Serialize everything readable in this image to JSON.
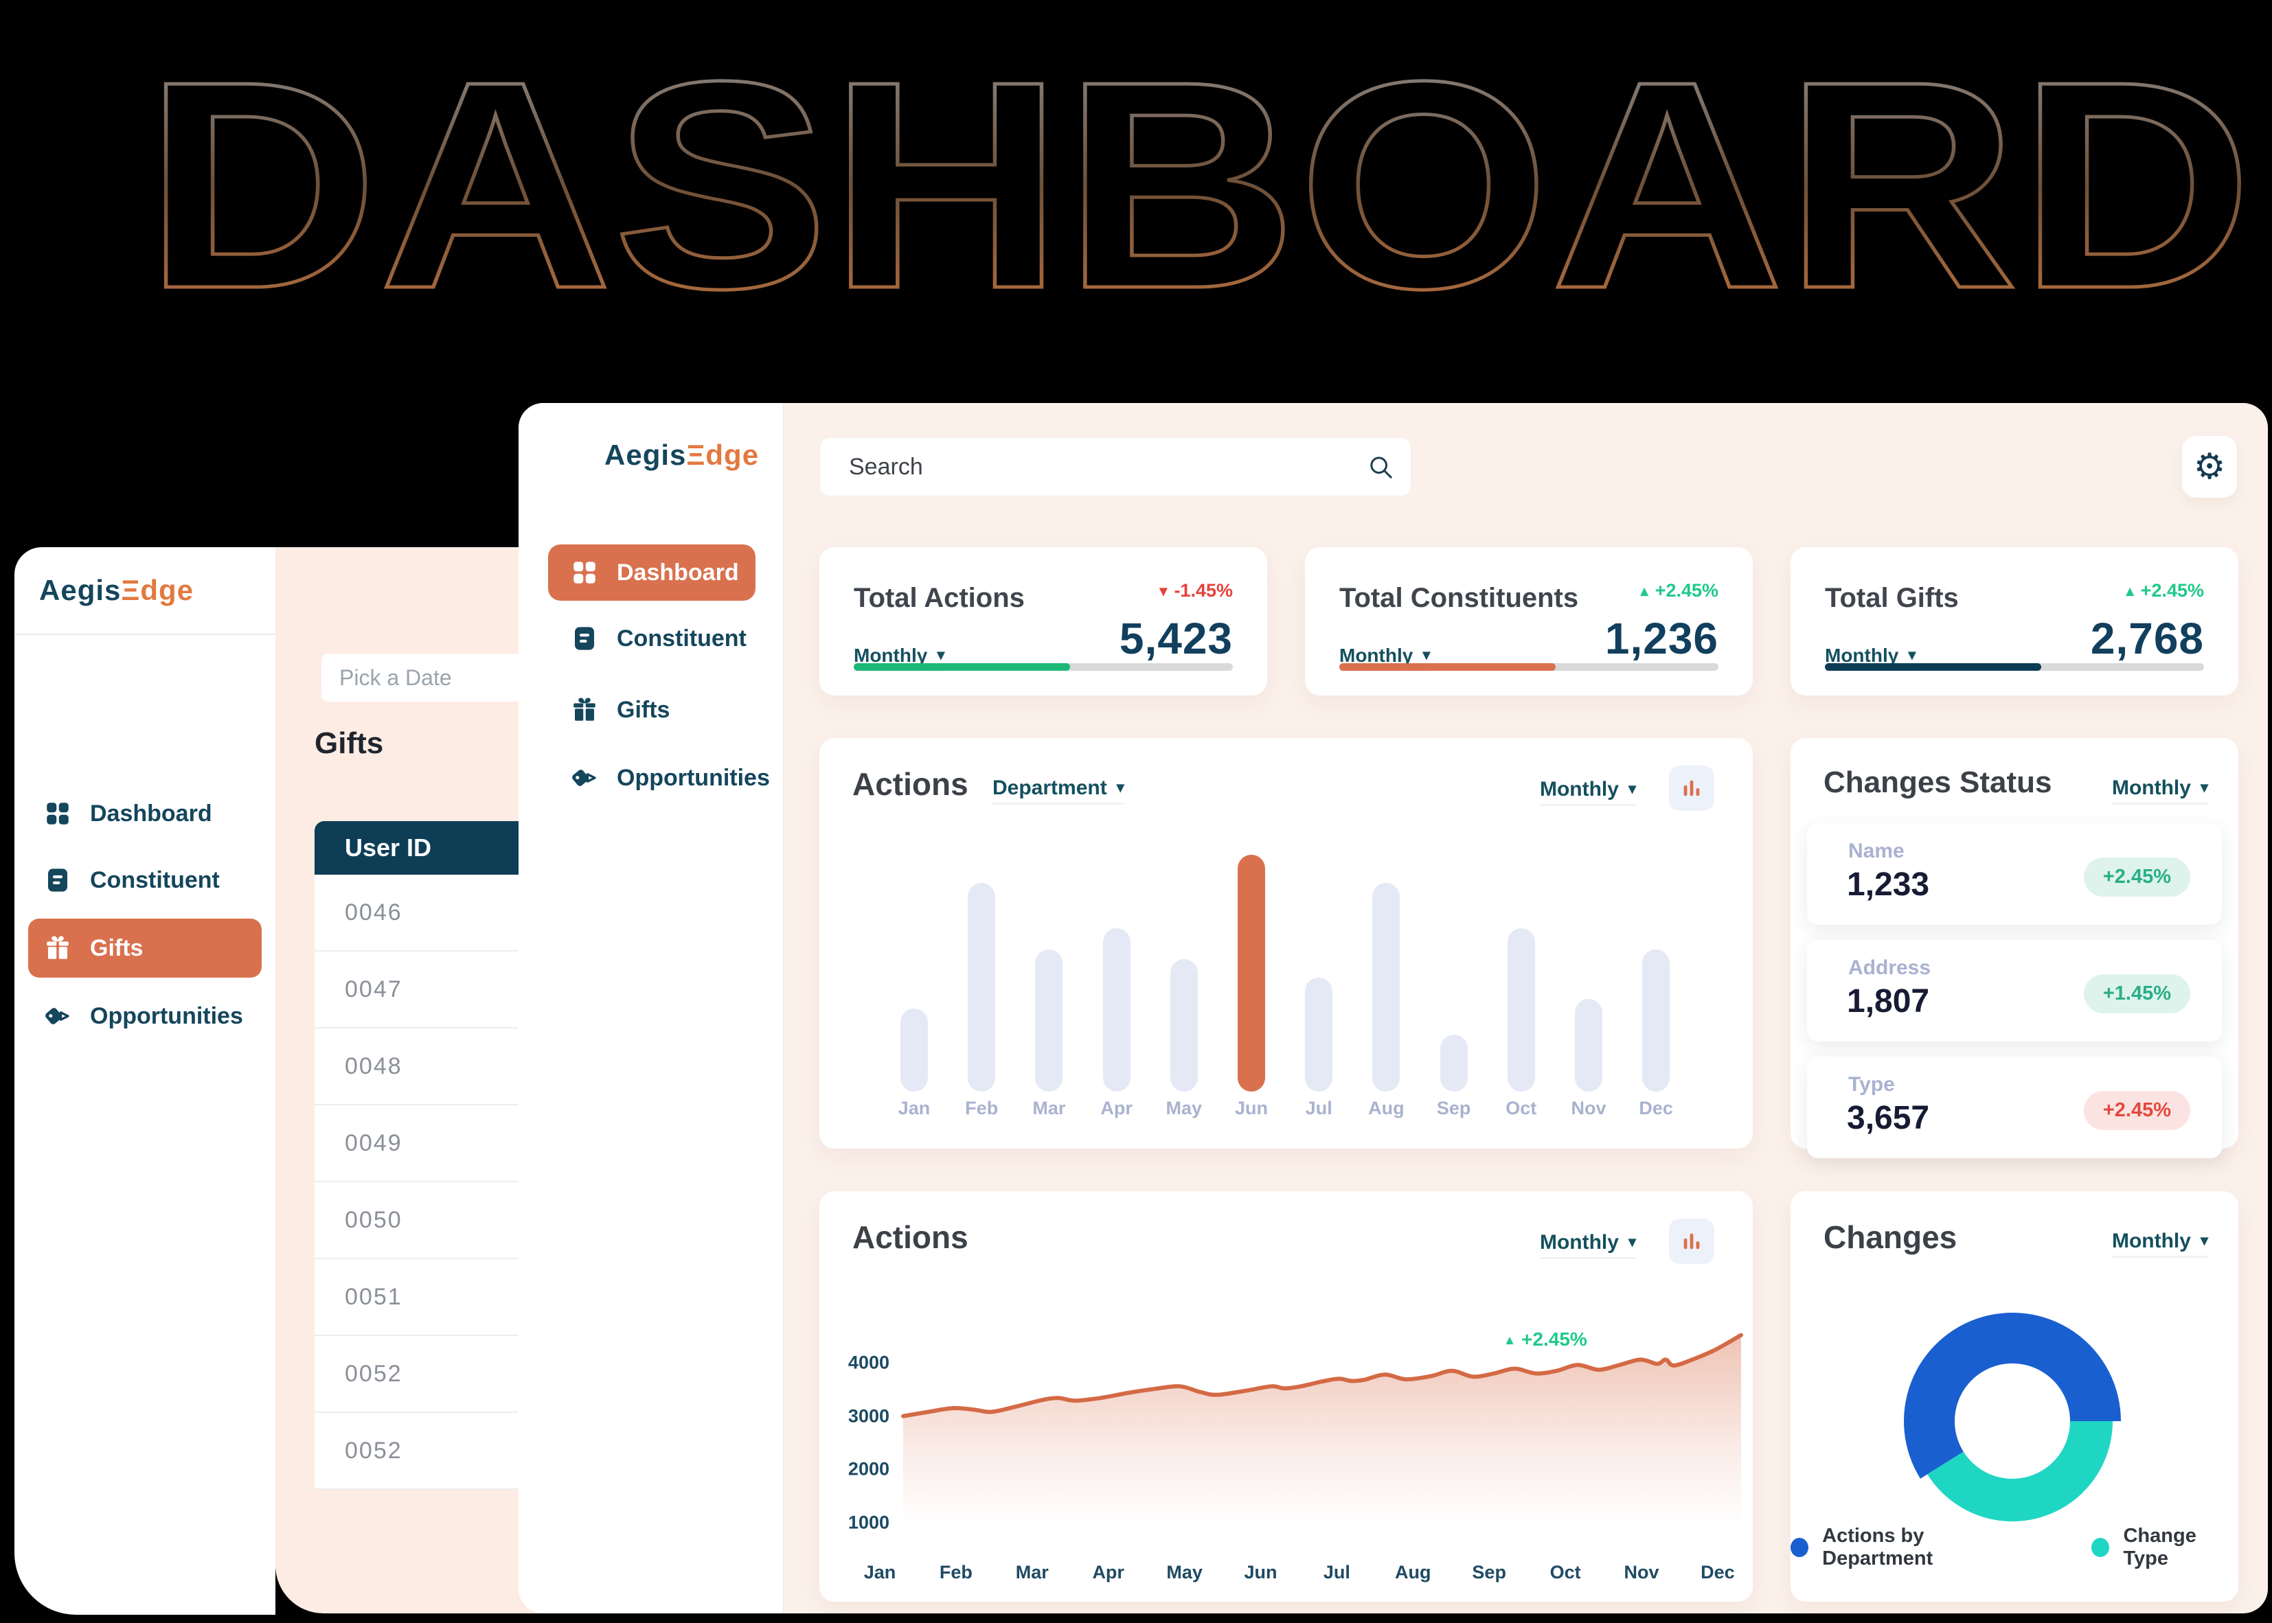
{
  "hero": {
    "title": "DASHBOARD",
    "stroke_top": "#8f8f8f",
    "stroke_bottom": "#c4753f"
  },
  "brand": {
    "left": "Aegis",
    "right": "Ξdge",
    "left_color": "#14465c",
    "right_color": "#e2793f"
  },
  "back_window": {
    "nav": [
      {
        "label": "Dashboard"
      },
      {
        "label": "Constituent"
      },
      {
        "label": "Gifts",
        "active": true
      },
      {
        "label": "Opportunities"
      }
    ],
    "date_placeholder": "Pick a Date",
    "section_title": "Gifts",
    "table": {
      "header": "User ID",
      "rows": [
        "0046",
        "0047",
        "0048",
        "0049",
        "0050",
        "0051",
        "0052",
        "0052"
      ]
    }
  },
  "main_window": {
    "nav": [
      {
        "label": "Dashboard",
        "active": true
      },
      {
        "label": "Constituent"
      },
      {
        "label": "Gifts"
      },
      {
        "label": "Opportunities"
      }
    ],
    "search_placeholder": "Search",
    "stat_cards": [
      {
        "title": "Total Actions",
        "delta": "-1.45%",
        "delta_dir": "down",
        "period": "Monthly",
        "value": "5,423",
        "progress_pct": 57,
        "bar_color": "#1db877"
      },
      {
        "title": "Total Constituents",
        "delta": "+2.45%",
        "delta_dir": "up",
        "period": "Monthly",
        "value": "1,236",
        "progress_pct": 57,
        "bar_color": "#d9714e"
      },
      {
        "title": "Total Gifts",
        "delta": "+2.45%",
        "delta_dir": "up",
        "period": "Monthly",
        "value": "2,768",
        "progress_pct": 57,
        "bar_color": "#0d3d55"
      }
    ],
    "bar_card": {
      "title": "Actions",
      "filter_label": "Department",
      "period": "Monthly"
    },
    "changes_status": {
      "title": "Changes Status",
      "period": "Monthly",
      "rows": [
        {
          "label": "Name",
          "value": "1,233",
          "delta": "+2.45%",
          "tone": "green"
        },
        {
          "label": "Address",
          "value": "1,807",
          "delta": "+1.45%",
          "tone": "green"
        },
        {
          "label": "Type",
          "value": "3,657",
          "delta": "+2.45%",
          "tone": "red"
        }
      ]
    },
    "line_card": {
      "title": "Actions",
      "period": "Monthly",
      "annotation": "+2.45%"
    },
    "donut_card": {
      "title": "Changes",
      "period": "Monthly",
      "legend": [
        {
          "label": "Actions by Department",
          "color": "#1a5fd0"
        },
        {
          "label": "Change Type",
          "color": "#1fd6c3"
        }
      ]
    }
  },
  "chart_data": [
    {
      "type": "bar",
      "title": "Actions by Department (Monthly)",
      "categories": [
        "Jan",
        "Feb",
        "Mar",
        "Apr",
        "May",
        "Jun",
        "Jul",
        "Aug",
        "Sep",
        "Oct",
        "Nov",
        "Dec"
      ],
      "values": [
        35,
        88,
        60,
        69,
        56,
        100,
        48,
        88,
        24,
        69,
        39,
        60
      ],
      "unit": "percent of max bar height",
      "highlight_category": "Jun",
      "bar_color": "#e4e9f5",
      "highlight_color": "#d9714e",
      "xlabel": "",
      "ylabel": "",
      "grid": false,
      "y_axis_shown": false
    },
    {
      "type": "area",
      "title": "Actions trend (Monthly)",
      "x_labels": [
        "Jan",
        "Feb",
        "Mar",
        "Apr",
        "May",
        "Jun",
        "Jul",
        "Aug",
        "Sep",
        "Oct",
        "Nov",
        "Dec"
      ],
      "yticks": [
        1000,
        2000,
        3000,
        4000
      ],
      "ylim": [
        1000,
        4700
      ],
      "line_color": "#d46a45",
      "annotation": {
        "text": "+2.45%",
        "color": "#1fc98a",
        "near": "Sep-Oct"
      },
      "points": [
        [
          0.0,
          3000
        ],
        [
          0.03,
          3080
        ],
        [
          0.06,
          3150
        ],
        [
          0.085,
          3120
        ],
        [
          0.105,
          3080
        ],
        [
          0.135,
          3180
        ],
        [
          0.165,
          3300
        ],
        [
          0.185,
          3340
        ],
        [
          0.205,
          3290
        ],
        [
          0.235,
          3340
        ],
        [
          0.27,
          3440
        ],
        [
          0.3,
          3510
        ],
        [
          0.33,
          3560
        ],
        [
          0.355,
          3450
        ],
        [
          0.375,
          3400
        ],
        [
          0.41,
          3480
        ],
        [
          0.44,
          3560
        ],
        [
          0.455,
          3520
        ],
        [
          0.475,
          3560
        ],
        [
          0.5,
          3650
        ],
        [
          0.52,
          3700
        ],
        [
          0.535,
          3660
        ],
        [
          0.55,
          3680
        ],
        [
          0.575,
          3780
        ],
        [
          0.6,
          3690
        ],
        [
          0.63,
          3750
        ],
        [
          0.655,
          3850
        ],
        [
          0.68,
          3740
        ],
        [
          0.705,
          3800
        ],
        [
          0.73,
          3890
        ],
        [
          0.755,
          3800
        ],
        [
          0.78,
          3850
        ],
        [
          0.805,
          3960
        ],
        [
          0.83,
          3870
        ],
        [
          0.855,
          3960
        ],
        [
          0.88,
          4060
        ],
        [
          0.9,
          3980
        ],
        [
          0.91,
          4060
        ],
        [
          0.92,
          3950
        ],
        [
          0.945,
          4080
        ],
        [
          0.97,
          4250
        ],
        [
          1.0,
          4520
        ]
      ]
    },
    {
      "type": "donut",
      "title": "Changes",
      "slices": [
        {
          "label": "Actions by Department",
          "pct": 59,
          "color": "#1a5fd0"
        },
        {
          "label": "Change Type",
          "pct": 41,
          "color": "#1fd6c3"
        }
      ],
      "legend_position": "bottom"
    }
  ]
}
